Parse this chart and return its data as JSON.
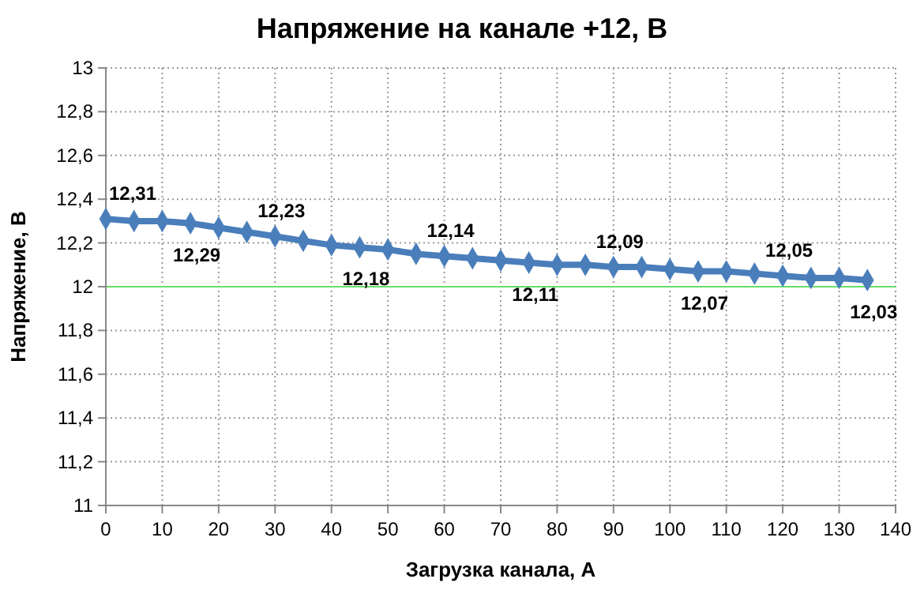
{
  "chart_data": {
    "type": "line",
    "title": "Напряжение на канале +12, В",
    "xlabel": "Загрузка канала, А",
    "ylabel": "Напряжение, В",
    "x": [
      0,
      5,
      10,
      15,
      20,
      25,
      30,
      35,
      40,
      45,
      50,
      55,
      60,
      65,
      70,
      75,
      80,
      85,
      90,
      95,
      100,
      105,
      110,
      115,
      120,
      125,
      130,
      135
    ],
    "series": [
      {
        "color": "#4a7ebb",
        "values": [
          12.31,
          12.3,
          12.3,
          12.29,
          12.27,
          12.25,
          12.23,
          12.21,
          12.19,
          12.18,
          12.17,
          12.15,
          12.14,
          12.13,
          12.12,
          12.11,
          12.1,
          12.1,
          12.09,
          12.09,
          12.08,
          12.07,
          12.07,
          12.06,
          12.05,
          12.04,
          12.04,
          12.03
        ],
        "value_labels": [
          "12,31",
          null,
          null,
          "12,29",
          null,
          null,
          "12,23",
          null,
          null,
          "12,18",
          null,
          null,
          "12,14",
          null,
          null,
          "12,11",
          null,
          null,
          "12,09",
          null,
          null,
          "12,07",
          null,
          null,
          "12,05",
          null,
          null,
          "12,03"
        ]
      }
    ],
    "xlim": [
      0,
      140
    ],
    "xticks": [
      0,
      10,
      20,
      30,
      40,
      50,
      60,
      70,
      80,
      90,
      100,
      110,
      120,
      130,
      140
    ],
    "ylim": [
      11,
      13
    ],
    "yticks": [
      11,
      {
        "value": 11.2,
        "label": "11,2"
      },
      {
        "value": 11.4,
        "label": "11,4"
      },
      {
        "value": 11.6,
        "label": "11,6"
      },
      {
        "value": 11.8,
        "label": "11,8"
      },
      12,
      {
        "value": 12.2,
        "label": "12,2"
      },
      {
        "value": 12.4,
        "label": "12,4"
      },
      {
        "value": 12.6,
        "label": "12,6"
      },
      {
        "value": 12.8,
        "label": "12,8"
      },
      13
    ],
    "ref_lines": [
      {
        "axis": "y",
        "value": 12,
        "color": "#66dd66"
      }
    ],
    "grid": true,
    "marker": "diamond",
    "line_style": "solid"
  }
}
